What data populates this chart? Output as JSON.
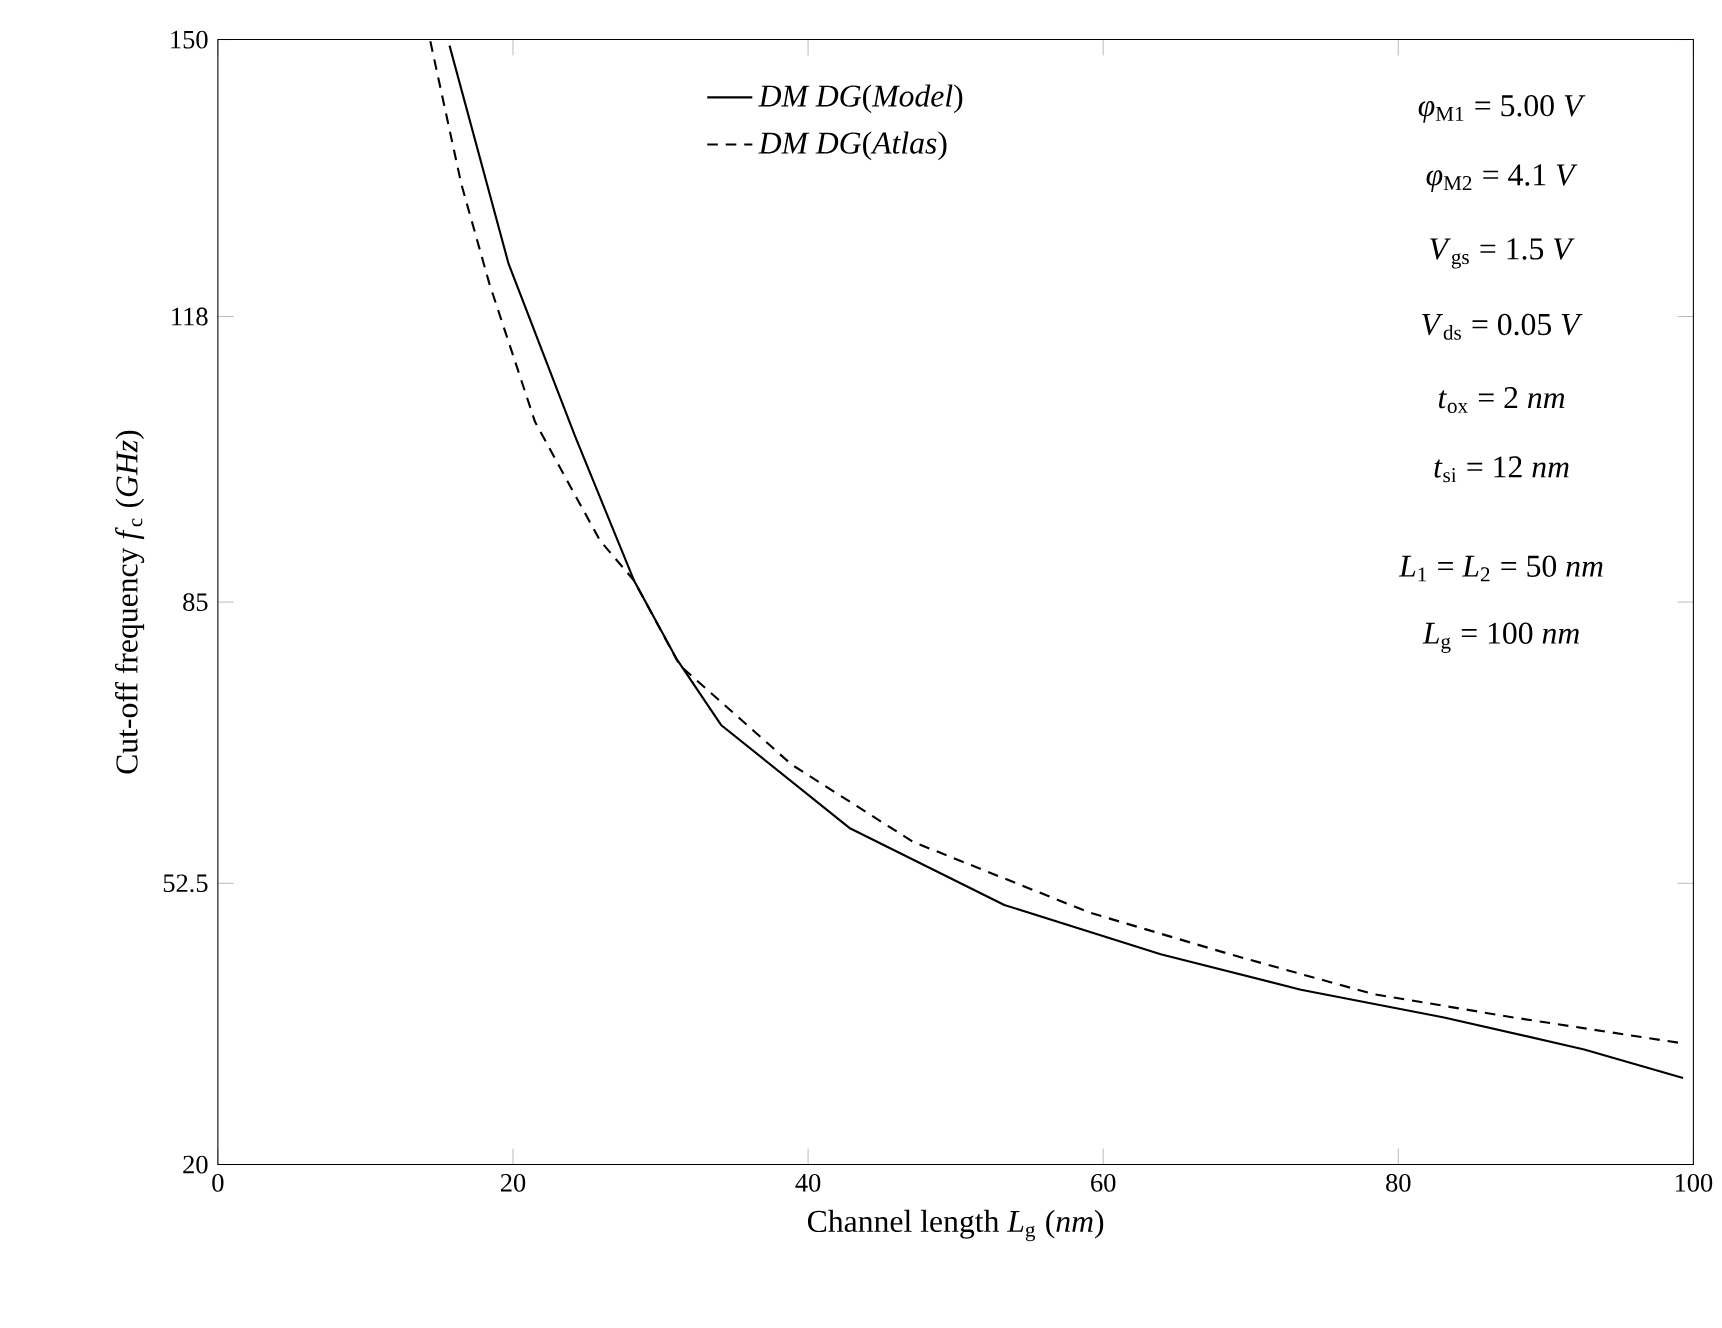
{
  "chart_data": {
    "type": "line",
    "xlabel": "Channel length *L*$_{g}$ (*nm*)",
    "ylabel": "Cut-off frequency *f*$_{c}$ (*GHz*)",
    "xlim": [
      0,
      100
    ],
    "ylim": [
      20,
      150
    ],
    "xticks": [
      0,
      20,
      40,
      60,
      80,
      100
    ],
    "yticks": [
      20,
      52.5,
      85,
      118,
      150
    ],
    "grid": false,
    "legend": "top",
    "marker": "none",
    "series": [
      {
        "name": "*DM DG*(*Model*)",
        "color": "#000000",
        "line_style": "solid",
        "x": [
          15.7,
          19.7,
          24.2,
          28.2,
          31.1,
          34.1,
          42.8,
          53.3,
          63.9,
          73.4,
          83.1,
          92.6,
          99.3
        ],
        "values": [
          149.3,
          124.1,
          104.2,
          87.5,
          78.4,
          70.8,
          58.9,
          50.0,
          44.3,
          40.2,
          37.0,
          33.3,
          30.0
        ]
      },
      {
        "name": "*DM DG*(*Atlas*)",
        "color": "#000000",
        "line_style": "dashed",
        "x": [
          14.4,
          16.5,
          18.4,
          21.5,
          25.9,
          28.2,
          31.3,
          38.9,
          47.1,
          59.1,
          68.6,
          78.3,
          87.8,
          99.3
        ],
        "values": [
          149.8,
          133.3,
          121.8,
          105.8,
          92.1,
          87.5,
          77.7,
          66.2,
          57.3,
          49.1,
          44.3,
          39.7,
          37.0,
          34.0
        ]
      }
    ],
    "annotations": [
      "*φ*$_{M1}$ = 5.00 *V*",
      "*φ*$_{M2}$ = 4.1 *V*",
      "*V*$_{gs}$ = 1.5 *V*",
      "*V*$_{ds}$ = 0.05 *V*",
      "*t*$_{ox}$ = 2 *nm*",
      "*t*$_{si}$ = 12 *nm*",
      "*L*$_{1}$ = *L*$_{2}$ = 50 *nm*",
      "*L*$_{g}$ = 100 *nm*"
    ]
  }
}
